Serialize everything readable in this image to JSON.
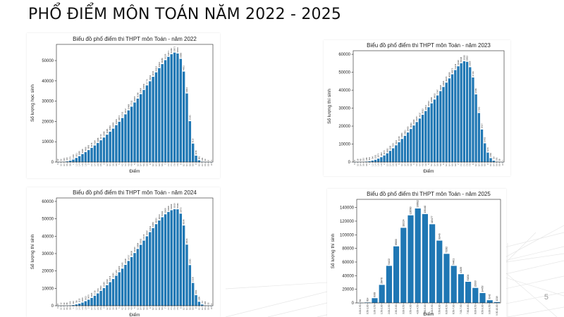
{
  "slide": {
    "title": "PHỔ ĐIỂM MÔN TOÁN NĂM 2022 - 2025",
    "page_number": "5"
  },
  "colors": {
    "bar": "#1f77b4",
    "axis": "#222222"
  },
  "chart_data": [
    {
      "type": "bar",
      "title": "Biểu đồ phổ điểm thi THPT môn Toán - năm 2022",
      "xlabel": "Điểm",
      "ylabel": "Số lượng học sinh",
      "ylim": [
        0,
        58000
      ],
      "yticks": [
        0,
        10000,
        20000,
        30000,
        40000,
        50000
      ],
      "grid": false,
      "categories": [
        "0",
        "0.2",
        "0.4",
        "0.6",
        "0.8",
        "1",
        "1.2",
        "1.4",
        "1.6",
        "1.8",
        "2",
        "2.2",
        "2.4",
        "2.6",
        "2.8",
        "3",
        "3.2",
        "3.4",
        "3.6",
        "3.8",
        "4",
        "4.2",
        "4.4",
        "4.6",
        "4.8",
        "5",
        "5.2",
        "5.4",
        "5.6",
        "5.8",
        "6",
        "6.2",
        "6.4",
        "6.6",
        "6.8",
        "7",
        "7.2",
        "7.4",
        "7.6",
        "7.8",
        "8",
        "8.2",
        "8.4",
        "8.6",
        "8.8",
        "9",
        "9.2",
        "9.4",
        "9.6",
        "9.8",
        "10"
      ],
      "values": [
        12,
        32,
        115,
        310,
        670,
        1216,
        2011,
        2898,
        3936,
        4906,
        5893,
        6976,
        8164,
        9388,
        10710,
        12086,
        13481,
        14964,
        16484,
        18181,
        19874,
        21705,
        23517,
        25468,
        27312,
        29365,
        31266,
        33464,
        35559,
        37779,
        39814,
        42011,
        44222,
        46316,
        48289,
        50229,
        51871,
        53162,
        53971,
        53519,
        50880,
        44611,
        33821,
        20143,
        9110,
        3158,
        861,
        181,
        33,
        6,
        1
      ]
    },
    {
      "type": "bar",
      "title": "Biểu đồ phổ điểm thi THPT môn Toán - năm 2023",
      "xlabel": "Điểm",
      "ylabel": "Số lượng thí sinh",
      "ylim": [
        0,
        62000
      ],
      "yticks": [
        0,
        10000,
        20000,
        30000,
        40000,
        50000,
        60000
      ],
      "grid": false,
      "categories": [
        "0",
        "0.2",
        "0.4",
        "0.6",
        "0.8",
        "1",
        "1.2",
        "1.4",
        "1.6",
        "1.8",
        "2",
        "2.2",
        "2.4",
        "2.6",
        "2.8",
        "3",
        "3.2",
        "3.4",
        "3.6",
        "3.8",
        "4",
        "4.2",
        "4.4",
        "4.6",
        "4.8",
        "5",
        "5.2",
        "5.4",
        "5.6",
        "5.8",
        "6",
        "6.2",
        "6.4",
        "6.6",
        "6.8",
        "7",
        "7.2",
        "7.4",
        "7.6",
        "7.8",
        "8",
        "8.2",
        "8.4",
        "8.6",
        "8.8",
        "9",
        "9.2",
        "9.4",
        "9.6",
        "9.8",
        "10"
      ],
      "values": [
        9,
        18,
        48,
        115,
        246,
        432,
        794,
        1251,
        1873,
        2697,
        3675,
        4862,
        6208,
        7653,
        9316,
        11016,
        12860,
        14611,
        16450,
        18394,
        20360,
        22257,
        24227,
        26322,
        28411,
        30534,
        32686,
        34813,
        37097,
        39495,
        41824,
        44225,
        46588,
        48873,
        51219,
        53338,
        55048,
        56162,
        55852,
        52829,
        47103,
        37685,
        27305,
        18127,
        10432,
        5276,
        2184,
        729,
        193,
        38,
        7
      ]
    },
    {
      "type": "bar",
      "title": "Biểu đồ phổ điểm thi THPT môn Toán - năm 2024",
      "xlabel": "Điểm",
      "ylabel": "Số lượng thí sinh",
      "ylim": [
        0,
        62000
      ],
      "yticks": [
        0,
        10000,
        20000,
        30000,
        40000,
        50000,
        60000
      ],
      "grid": false,
      "categories": [
        "0",
        "0.2",
        "0.4",
        "0.6",
        "0.8",
        "1",
        "1.2",
        "1.4",
        "1.6",
        "1.8",
        "2",
        "2.2",
        "2.4",
        "2.6",
        "2.8",
        "3",
        "3.2",
        "3.4",
        "3.6",
        "3.8",
        "4",
        "4.2",
        "4.4",
        "4.6",
        "4.8",
        "5",
        "5.2",
        "5.4",
        "5.6",
        "5.8",
        "6",
        "6.2",
        "6.4",
        "6.6",
        "6.8",
        "7",
        "7.2",
        "7.4",
        "7.6",
        "7.8",
        "8",
        "8.2",
        "8.4",
        "8.6",
        "8.8",
        "9",
        "9.2",
        "9.4",
        "9.6",
        "9.8",
        "10"
      ],
      "values": [
        6,
        12,
        34,
        89,
        190,
        402,
        760,
        1213,
        1815,
        2613,
        3470,
        4495,
        5728,
        7091,
        8563,
        10149,
        11818,
        13576,
        15363,
        17257,
        19269,
        21343,
        23508,
        25757,
        28008,
        30320,
        32684,
        35052,
        37478,
        39947,
        42332,
        44665,
        46933,
        49014,
        50922,
        52608,
        53945,
        54949,
        55510,
        55463,
        52973,
        46149,
        35164,
        23383,
        13120,
        6093,
        2289,
        707,
        166,
        33,
        4
      ]
    },
    {
      "type": "bar",
      "title": "Biểu đồ phổ điểm thi THPT môn Toán - năm 2025",
      "xlabel": "Điểm",
      "ylabel": "Số lượng thí sinh",
      "ylim": [
        0,
        152000
      ],
      "yticks": [
        0,
        20000,
        40000,
        60000,
        80000,
        100000,
        120000,
        140000
      ],
      "grid": false,
      "categories": [
        "0.00-0.50",
        "0.50-1.00",
        "1.00-1.50",
        "1.50-2.00",
        "2.00-2.50",
        "2.50-3.00",
        "3.00-3.50",
        "3.50-4.00",
        "4.00-4.50",
        "4.50-5.00",
        "5.00-5.50",
        "5.50-6.00",
        "6.00-6.50",
        "6.50-7.00",
        "7.00-7.50",
        "7.50-8.00",
        "8.00-8.50",
        "8.50-9.00",
        "9.00-9.50",
        "9.50-10.00"
      ],
      "values": [
        84,
        614,
        6963,
        26478,
        54422,
        83060,
        110224,
        128560,
        138612,
        130440,
        115477,
        91449,
        72032,
        54401,
        42183,
        31004,
        22003,
        14453,
        3942,
        1219
      ]
    }
  ]
}
